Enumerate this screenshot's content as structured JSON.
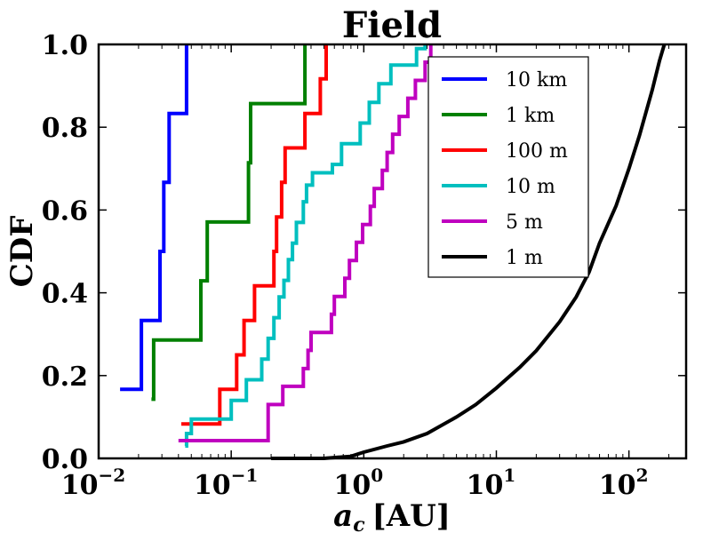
{
  "chart_data": {
    "type": "line",
    "title": "Field",
    "xlabel_symbol": "a",
    "xlabel_subscript": "c",
    "xlabel_unit": "[AU]",
    "ylabel": "CDF",
    "x_scale": "log",
    "xlim": [
      0.01,
      270
    ],
    "ylim": [
      0.0,
      1.0
    ],
    "x_ticks": [
      {
        "value": 0.01,
        "base": "10",
        "exp": "−2"
      },
      {
        "value": 0.1,
        "base": "10",
        "exp": "−1"
      },
      {
        "value": 1,
        "base": "10",
        "exp": "0"
      },
      {
        "value": 10,
        "base": "10",
        "exp": "1"
      },
      {
        "value": 100,
        "base": "10",
        "exp": "2"
      }
    ],
    "y_ticks": [
      {
        "value": 0.0,
        "label": "0.0"
      },
      {
        "value": 0.2,
        "label": "0.2"
      },
      {
        "value": 0.4,
        "label": "0.4"
      },
      {
        "value": 0.6,
        "label": "0.6"
      },
      {
        "value": 0.8,
        "label": "0.8"
      },
      {
        "value": 1.0,
        "label": "1.0"
      }
    ],
    "legend_position": "top-right",
    "series": [
      {
        "name": "10 km",
        "color": "#0000ff",
        "style": "step",
        "points": [
          [
            0.0145,
            0.167
          ],
          [
            0.021,
            0.167
          ],
          [
            0.021,
            0.333
          ],
          [
            0.029,
            0.333
          ],
          [
            0.029,
            0.5
          ],
          [
            0.031,
            0.5
          ],
          [
            0.031,
            0.667
          ],
          [
            0.034,
            0.667
          ],
          [
            0.034,
            0.833
          ],
          [
            0.046,
            0.833
          ],
          [
            0.046,
            1.0
          ]
        ]
      },
      {
        "name": "1 km",
        "color": "#008000",
        "style": "step",
        "points": [
          [
            0.025,
            0.143
          ],
          [
            0.026,
            0.143
          ],
          [
            0.026,
            0.286
          ],
          [
            0.059,
            0.286
          ],
          [
            0.059,
            0.429
          ],
          [
            0.066,
            0.429
          ],
          [
            0.066,
            0.571
          ],
          [
            0.135,
            0.571
          ],
          [
            0.135,
            0.714
          ],
          [
            0.14,
            0.714
          ],
          [
            0.14,
            0.857
          ],
          [
            0.36,
            0.857
          ],
          [
            0.36,
            1.0
          ]
        ]
      },
      {
        "name": "100 m",
        "color": "#ff0000",
        "style": "step",
        "points": [
          [
            0.042,
            0.083
          ],
          [
            0.082,
            0.083
          ],
          [
            0.082,
            0.167
          ],
          [
            0.11,
            0.167
          ],
          [
            0.11,
            0.25
          ],
          [
            0.125,
            0.25
          ],
          [
            0.125,
            0.333
          ],
          [
            0.15,
            0.333
          ],
          [
            0.15,
            0.417
          ],
          [
            0.21,
            0.417
          ],
          [
            0.21,
            0.5
          ],
          [
            0.22,
            0.5
          ],
          [
            0.22,
            0.583
          ],
          [
            0.24,
            0.583
          ],
          [
            0.24,
            0.667
          ],
          [
            0.255,
            0.667
          ],
          [
            0.255,
            0.75
          ],
          [
            0.36,
            0.75
          ],
          [
            0.36,
            0.833
          ],
          [
            0.47,
            0.833
          ],
          [
            0.47,
            0.917
          ],
          [
            0.52,
            0.917
          ],
          [
            0.52,
            1.0
          ]
        ]
      },
      {
        "name": "10 m",
        "color": "#00bfbf",
        "style": "step",
        "points": [
          [
            0.045,
            0.03
          ],
          [
            0.046,
            0.03
          ],
          [
            0.046,
            0.06
          ],
          [
            0.05,
            0.06
          ],
          [
            0.05,
            0.095
          ],
          [
            0.1,
            0.095
          ],
          [
            0.1,
            0.14
          ],
          [
            0.13,
            0.14
          ],
          [
            0.13,
            0.19
          ],
          [
            0.17,
            0.19
          ],
          [
            0.17,
            0.24
          ],
          [
            0.19,
            0.24
          ],
          [
            0.19,
            0.29
          ],
          [
            0.21,
            0.29
          ],
          [
            0.21,
            0.34
          ],
          [
            0.23,
            0.34
          ],
          [
            0.23,
            0.39
          ],
          [
            0.25,
            0.39
          ],
          [
            0.25,
            0.43
          ],
          [
            0.27,
            0.43
          ],
          [
            0.27,
            0.48
          ],
          [
            0.29,
            0.48
          ],
          [
            0.29,
            0.52
          ],
          [
            0.31,
            0.52
          ],
          [
            0.31,
            0.57
          ],
          [
            0.35,
            0.57
          ],
          [
            0.35,
            0.62
          ],
          [
            0.37,
            0.62
          ],
          [
            0.37,
            0.66
          ],
          [
            0.41,
            0.66
          ],
          [
            0.41,
            0.69
          ],
          [
            0.58,
            0.69
          ],
          [
            0.58,
            0.71
          ],
          [
            0.68,
            0.71
          ],
          [
            0.68,
            0.76
          ],
          [
            0.94,
            0.76
          ],
          [
            0.94,
            0.81
          ],
          [
            1.1,
            0.81
          ],
          [
            1.1,
            0.86
          ],
          [
            1.3,
            0.86
          ],
          [
            1.3,
            0.905
          ],
          [
            1.6,
            0.905
          ],
          [
            1.6,
            0.95
          ],
          [
            2.5,
            0.95
          ],
          [
            2.5,
            0.99
          ],
          [
            2.9,
            0.99
          ],
          [
            2.9,
            1.0
          ]
        ]
      },
      {
        "name": "5 m",
        "color": "#bf00bf",
        "style": "step",
        "points": [
          [
            0.04,
            0.043
          ],
          [
            0.19,
            0.043
          ],
          [
            0.19,
            0.087
          ],
          [
            0.19,
            0.13
          ],
          [
            0.245,
            0.13
          ],
          [
            0.245,
            0.174
          ],
          [
            0.35,
            0.174
          ],
          [
            0.35,
            0.217
          ],
          [
            0.38,
            0.217
          ],
          [
            0.38,
            0.261
          ],
          [
            0.4,
            0.261
          ],
          [
            0.4,
            0.304
          ],
          [
            0.57,
            0.304
          ],
          [
            0.57,
            0.348
          ],
          [
            0.6,
            0.348
          ],
          [
            0.6,
            0.391
          ],
          [
            0.72,
            0.391
          ],
          [
            0.72,
            0.435
          ],
          [
            0.78,
            0.435
          ],
          [
            0.78,
            0.478
          ],
          [
            0.88,
            0.478
          ],
          [
            0.88,
            0.522
          ],
          [
            0.98,
            0.522
          ],
          [
            0.98,
            0.565
          ],
          [
            1.12,
            0.565
          ],
          [
            1.12,
            0.609
          ],
          [
            1.2,
            0.609
          ],
          [
            1.2,
            0.652
          ],
          [
            1.38,
            0.652
          ],
          [
            1.38,
            0.696
          ],
          [
            1.5,
            0.696
          ],
          [
            1.5,
            0.739
          ],
          [
            1.65,
            0.739
          ],
          [
            1.65,
            0.783
          ],
          [
            1.85,
            0.783
          ],
          [
            1.85,
            0.826
          ],
          [
            2.15,
            0.826
          ],
          [
            2.15,
            0.87
          ],
          [
            2.45,
            0.87
          ],
          [
            2.45,
            0.913
          ],
          [
            2.9,
            0.913
          ],
          [
            2.9,
            0.957
          ],
          [
            3.2,
            0.957
          ],
          [
            3.2,
            1.0
          ]
        ]
      },
      {
        "name": "1 m",
        "color": "#000000",
        "style": "line",
        "points": [
          [
            0.2,
            0.0
          ],
          [
            0.5,
            0.0
          ],
          [
            0.8,
            0.005
          ],
          [
            1.0,
            0.015
          ],
          [
            1.5,
            0.03
          ],
          [
            2.0,
            0.04
          ],
          [
            3.0,
            0.06
          ],
          [
            5.0,
            0.1
          ],
          [
            7.0,
            0.13
          ],
          [
            10.0,
            0.17
          ],
          [
            15.0,
            0.22
          ],
          [
            20.0,
            0.26
          ],
          [
            30.0,
            0.33
          ],
          [
            40.0,
            0.39
          ],
          [
            50.0,
            0.45
          ],
          [
            60.0,
            0.52
          ],
          [
            80.0,
            0.61
          ],
          [
            100.0,
            0.7
          ],
          [
            120.0,
            0.78
          ],
          [
            150.0,
            0.89
          ],
          [
            170.0,
            0.96
          ],
          [
            185.0,
            1.0
          ]
        ]
      }
    ]
  }
}
